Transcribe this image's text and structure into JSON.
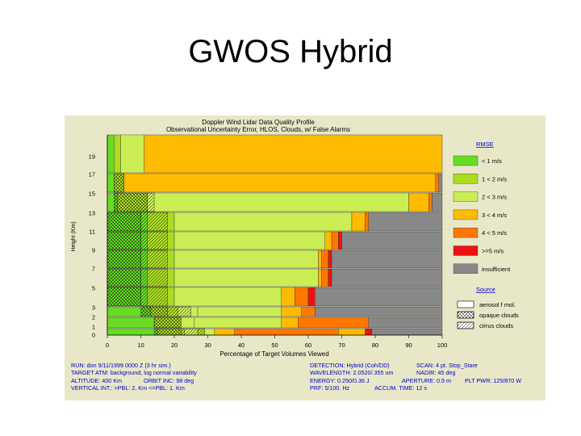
{
  "slide": {
    "title": "GWOS Hybrid"
  },
  "chart_data": {
    "type": "bar",
    "title": "Doppler Wind Lidar Data Quality Profile",
    "subtitle": "Observational Uncertainty Error, HLOS, Clouds, w/ False Alarms",
    "xlabel": "Percentage of Target Volumes Viewed",
    "ylabel": "Height (Km)",
    "xlim": [
      0,
      100
    ],
    "x_ticks": [
      "0",
      "10",
      "20",
      "30",
      "40",
      "50",
      "60",
      "70",
      "80",
      "90",
      "100"
    ],
    "y_ticks": [
      "19",
      "17",
      "15",
      "13",
      "11",
      "9",
      "7",
      "5",
      "3",
      "2",
      "1",
      "0"
    ],
    "legend_rmse_title": "RMSE",
    "legend_source_title": "Source",
    "categories": [
      {
        "name": "< 1 m/s",
        "color": "#66dd22"
      },
      {
        "name": "1 < 2 m/s",
        "color": "#aadd22"
      },
      {
        "name": "2 < 3 m/s",
        "color": "#ccee55"
      },
      {
        "name": "3 < 4 m/s",
        "color": "#ffbb00"
      },
      {
        "name": "4 < 5 m/s",
        "color": "#ff7700"
      },
      {
        "name": ">=5 m/s",
        "color": "#ee1111"
      },
      {
        "name": "insufficient",
        "color": "#888888"
      }
    ],
    "sources": [
      {
        "name": "aerosol f mol.",
        "pattern": "white"
      },
      {
        "name": "opaque clouds",
        "pattern": "crosshatch"
      },
      {
        "name": "cirrus clouds",
        "pattern": "diagonal"
      }
    ],
    "series": [
      {
        "layer": [
          0,
          1
        ],
        "segs": [
          [
            15,
            0
          ],
          [
            8,
            1
          ],
          [
            4,
            2
          ],
          [
            2,
            1
          ],
          [
            3,
            2
          ],
          [
            6,
            3
          ],
          [
            31,
            4
          ],
          [
            8,
            3
          ],
          [
            2,
            5
          ],
          [
            21,
            6
          ]
        ],
        "hatch": [
          [
            14,
            22,
            "x"
          ],
          [
            22,
            29,
            "d"
          ]
        ]
      },
      {
        "layer": [
          1,
          2
        ],
        "segs": [
          [
            14,
            0
          ],
          [
            8,
            1
          ],
          [
            4,
            2
          ],
          [
            26,
            2
          ],
          [
            5,
            3
          ],
          [
            21,
            4
          ],
          [
            22,
            6
          ]
        ],
        "hatch": [
          [
            14,
            22,
            "x"
          ]
        ]
      },
      {
        "layer": [
          2,
          3
        ],
        "segs": [
          [
            13,
            0
          ],
          [
            8,
            1
          ],
          [
            6,
            2
          ],
          [
            25,
            2
          ],
          [
            6,
            3
          ],
          [
            4,
            4
          ],
          [
            38,
            6
          ]
        ],
        "hatch": [
          [
            10,
            18,
            "x"
          ],
          [
            18,
            25,
            "d"
          ]
        ]
      },
      {
        "layer": [
          3,
          5
        ],
        "segs": [
          [
            12,
            0
          ],
          [
            8,
            1
          ],
          [
            32,
            2
          ],
          [
            4,
            3
          ],
          [
            4,
            4
          ],
          [
            2,
            5
          ],
          [
            38,
            6
          ]
        ],
        "hatch": [
          [
            0,
            10,
            "x"
          ],
          [
            10,
            18,
            "d"
          ]
        ]
      },
      {
        "layer": [
          5,
          7
        ],
        "segs": [
          [
            12,
            0
          ],
          [
            8,
            1
          ],
          [
            43,
            2
          ],
          [
            1,
            3
          ],
          [
            2,
            4
          ],
          [
            1,
            5
          ],
          [
            33,
            6
          ]
        ],
        "hatch": [
          [
            0,
            10,
            "x"
          ],
          [
            10,
            18,
            "d"
          ]
        ]
      },
      {
        "layer": [
          7,
          9
        ],
        "segs": [
          [
            12,
            0
          ],
          [
            8,
            1
          ],
          [
            43,
            2
          ],
          [
            1,
            3
          ],
          [
            2,
            4
          ],
          [
            1,
            5
          ],
          [
            33,
            6
          ]
        ],
        "hatch": [
          [
            0,
            10,
            "x"
          ],
          [
            10,
            18,
            "d"
          ]
        ]
      },
      {
        "layer": [
          9,
          11
        ],
        "segs": [
          [
            12,
            0
          ],
          [
            8,
            1
          ],
          [
            45,
            2
          ],
          [
            2,
            3
          ],
          [
            2,
            4
          ],
          [
            1,
            5
          ],
          [
            30,
            6
          ]
        ],
        "hatch": [
          [
            0,
            10,
            "x"
          ],
          [
            10,
            18,
            "d"
          ]
        ]
      },
      {
        "layer": [
          11,
          13
        ],
        "segs": [
          [
            12,
            0
          ],
          [
            8,
            1
          ],
          [
            53,
            2
          ],
          [
            4,
            3
          ],
          [
            1,
            4
          ],
          [
            22,
            6
          ]
        ],
        "hatch": [
          [
            0,
            10,
            "x"
          ],
          [
            10,
            18,
            "d"
          ]
        ]
      },
      {
        "layer": [
          13,
          15
        ],
        "segs": [
          [
            3,
            0
          ],
          [
            9,
            1
          ],
          [
            78,
            2
          ],
          [
            6,
            3
          ],
          [
            1,
            4
          ],
          [
            3,
            6
          ]
        ],
        "hatch": [
          [
            2,
            12,
            "x"
          ],
          [
            12,
            14,
            "d"
          ]
        ]
      },
      {
        "layer": [
          15,
          17
        ],
        "segs": [
          [
            2,
            0
          ],
          [
            3,
            1
          ],
          [
            93,
            3
          ],
          [
            1,
            4
          ],
          [
            1,
            6
          ]
        ],
        "hatch": [
          [
            2,
            5,
            "x"
          ]
        ]
      },
      {
        "layer": [
          17,
          19
        ],
        "segs": [
          [
            2,
            0
          ],
          [
            2,
            1
          ],
          [
            7,
            2
          ],
          [
            89,
            3
          ]
        ],
        "hatch": []
      }
    ]
  },
  "footer": {
    "run_label": "RUN:",
    "run_value": "don 9/11/1999 0000 Z (3 hr sim.)",
    "target_label": "TARGET ATM:",
    "target_value": "background, log normal variability",
    "altitude_label": "ALTITUDE:",
    "altitude_value": "400 Km",
    "orbit_label": "ORBIT INC:",
    "orbit_value": "98 deg",
    "vertical_label": "VERTICAL INT.:",
    "vertical_value": ">PBL: 2. Km   <=PBL: 1. Km",
    "detection_label": "DETECTION:",
    "detection_value": "Hybrid (Coh/DD)",
    "scan_label": "SCAN:",
    "scan_value": "4 pt. Stop_Stare",
    "wavelength_label": "WAVELENGTH:",
    "wavelength_value": "2.0520/.355 um",
    "nadir_label": "NADIR:",
    "nadir_value": "45 deg",
    "energy_label": "ENERGY:",
    "energy_value": "0.250/0.36 J",
    "aperture_label": "APERTURE:",
    "aperture_value": "0.5 m",
    "pltpwr_label": "PLT PWR:",
    "pltpwr_value": "125/870 W",
    "prf_label": "PRF:",
    "prf_value": "5/100. Hz",
    "accum_label": "ACCUM. TIME:",
    "accum_value": "12 s"
  }
}
